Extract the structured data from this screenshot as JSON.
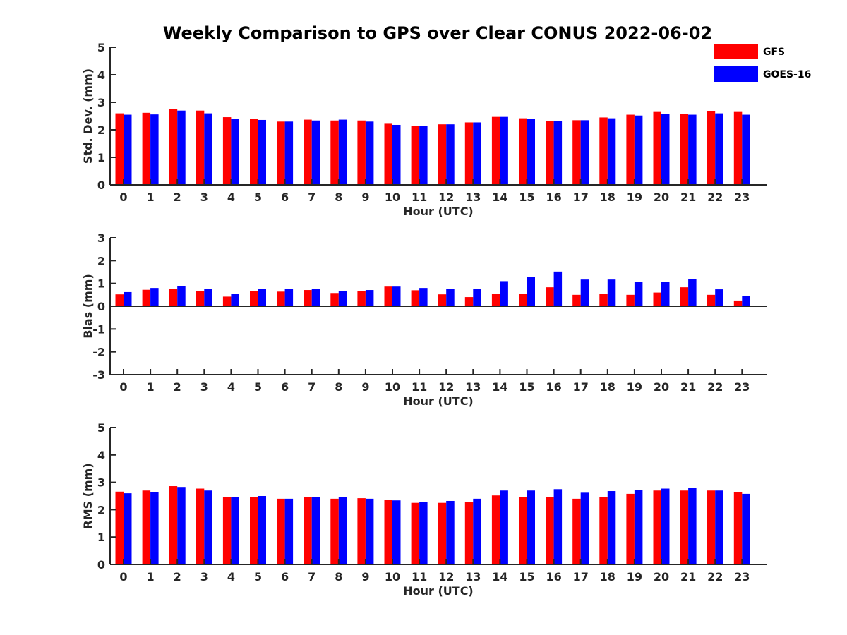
{
  "title": "Weekly Comparison to GPS over Clear CONUS 2022-06-02",
  "legend": {
    "placement": "top-right",
    "entries": [
      {
        "name": "GFS",
        "color": "#ff0000"
      },
      {
        "name": "GOES-16",
        "color": "#0000ff"
      }
    ]
  },
  "chart_data": [
    {
      "type": "bar",
      "xlabel": "Hour (UTC)",
      "ylabel": "Std. Dev. (mm)",
      "ylim": [
        0,
        5
      ],
      "yticks": [
        0,
        1,
        2,
        3,
        4,
        5
      ],
      "categories": [
        "0",
        "1",
        "2",
        "3",
        "4",
        "5",
        "6",
        "7",
        "8",
        "9",
        "10",
        "11",
        "12",
        "13",
        "14",
        "15",
        "16",
        "17",
        "18",
        "19",
        "20",
        "21",
        "22",
        "23"
      ],
      "series": [
        {
          "name": "GFS",
          "color": "#ff0000",
          "values": [
            2.6,
            2.62,
            2.75,
            2.7,
            2.46,
            2.4,
            2.3,
            2.37,
            2.34,
            2.34,
            2.22,
            2.15,
            2.2,
            2.27,
            2.47,
            2.42,
            2.33,
            2.35,
            2.45,
            2.55,
            2.65,
            2.58,
            2.68,
            2.65
          ]
        },
        {
          "name": "GOES-16",
          "color": "#0000ff",
          "values": [
            2.55,
            2.56,
            2.7,
            2.6,
            2.4,
            2.36,
            2.3,
            2.34,
            2.37,
            2.3,
            2.18,
            2.15,
            2.2,
            2.27,
            2.47,
            2.4,
            2.33,
            2.35,
            2.42,
            2.52,
            2.58,
            2.55,
            2.6,
            2.55
          ]
        }
      ]
    },
    {
      "type": "bar",
      "xlabel": "Hour (UTC)",
      "ylabel": "Bias (mm)",
      "ylim": [
        -3,
        3
      ],
      "yticks": [
        -3,
        -2,
        -1,
        0,
        1,
        2,
        3
      ],
      "categories": [
        "0",
        "1",
        "2",
        "3",
        "4",
        "5",
        "6",
        "7",
        "8",
        "9",
        "10",
        "11",
        "12",
        "13",
        "14",
        "15",
        "16",
        "17",
        "18",
        "19",
        "20",
        "21",
        "22",
        "23"
      ],
      "series": [
        {
          "name": "GFS",
          "color": "#ff0000",
          "values": [
            0.52,
            0.72,
            0.76,
            0.68,
            0.42,
            0.67,
            0.64,
            0.71,
            0.58,
            0.65,
            0.86,
            0.7,
            0.52,
            0.4,
            0.55,
            0.55,
            0.83,
            0.5,
            0.55,
            0.5,
            0.6,
            0.83,
            0.5,
            0.25
          ]
        },
        {
          "name": "GOES-16",
          "color": "#0000ff",
          "values": [
            0.62,
            0.8,
            0.87,
            0.75,
            0.53,
            0.77,
            0.75,
            0.77,
            0.68,
            0.71,
            0.86,
            0.8,
            0.76,
            0.77,
            1.1,
            1.27,
            1.52,
            1.17,
            1.17,
            1.08,
            1.08,
            1.2,
            0.74,
            0.44
          ]
        }
      ]
    },
    {
      "type": "bar",
      "xlabel": "Hour (UTC)",
      "ylabel": "RMS (mm)",
      "ylim": [
        0,
        5
      ],
      "yticks": [
        0,
        1,
        2,
        3,
        4,
        5
      ],
      "categories": [
        "0",
        "1",
        "2",
        "3",
        "4",
        "5",
        "6",
        "7",
        "8",
        "9",
        "10",
        "11",
        "12",
        "13",
        "14",
        "15",
        "16",
        "17",
        "18",
        "19",
        "20",
        "21",
        "22",
        "23"
      ],
      "series": [
        {
          "name": "GFS",
          "color": "#ff0000",
          "values": [
            2.66,
            2.7,
            2.86,
            2.77,
            2.47,
            2.47,
            2.4,
            2.47,
            2.4,
            2.42,
            2.37,
            2.25,
            2.25,
            2.28,
            2.52,
            2.47,
            2.47,
            2.4,
            2.47,
            2.58,
            2.7,
            2.7,
            2.7,
            2.65
          ]
        },
        {
          "name": "GOES-16",
          "color": "#0000ff",
          "values": [
            2.6,
            2.65,
            2.83,
            2.7,
            2.45,
            2.5,
            2.4,
            2.45,
            2.45,
            2.4,
            2.34,
            2.27,
            2.32,
            2.4,
            2.7,
            2.7,
            2.75,
            2.62,
            2.68,
            2.72,
            2.77,
            2.8,
            2.7,
            2.58
          ]
        }
      ]
    }
  ]
}
